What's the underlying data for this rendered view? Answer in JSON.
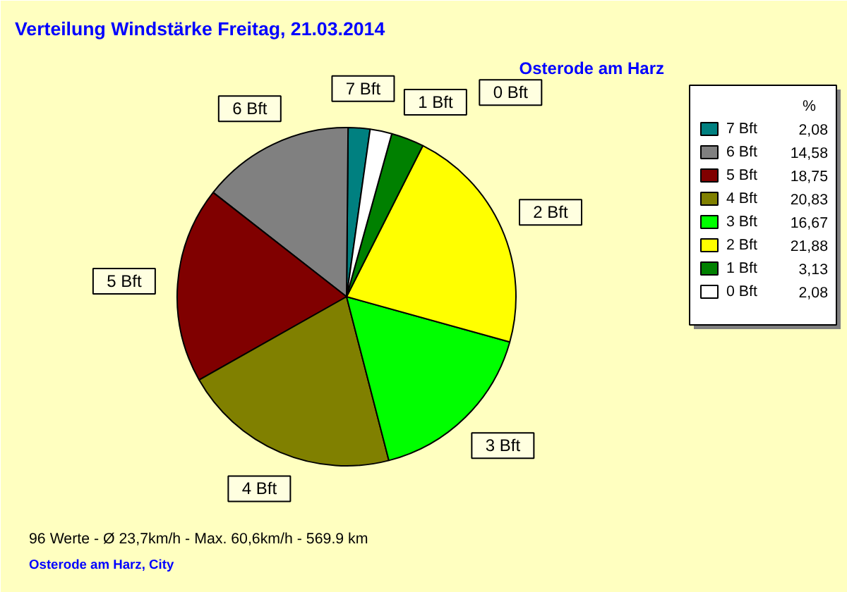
{
  "chart_data": {
    "type": "pie",
    "title": "Verteilung Windstärke  Freitag, 21.03.2014",
    "subtitle": "Osterode am Harz",
    "legend_title": "%",
    "categories": [
      "7 Bft",
      "6 Bft",
      "5 Bft",
      "4 Bft",
      "3 Bft",
      "2 Bft",
      "1 Bft",
      "0 Bft"
    ],
    "values": [
      2.08,
      14.58,
      18.75,
      20.83,
      16.67,
      21.88,
      3.13,
      2.08
    ],
    "value_labels": [
      "2,08",
      "14,58",
      "18,75",
      "20,83",
      "16,67",
      "21,88",
      "3,13",
      "2,08"
    ],
    "colors": [
      "#008080",
      "#808080",
      "#800000",
      "#808000",
      "#00ff00",
      "#ffff00",
      "#008000",
      "#ffffff"
    ],
    "legend": "right",
    "annotations": [
      "96 Werte   -   Ø 23,7km/h  -  Max. 60,6km/h   -   569.9 km",
      "Osterode am Harz, City"
    ]
  }
}
